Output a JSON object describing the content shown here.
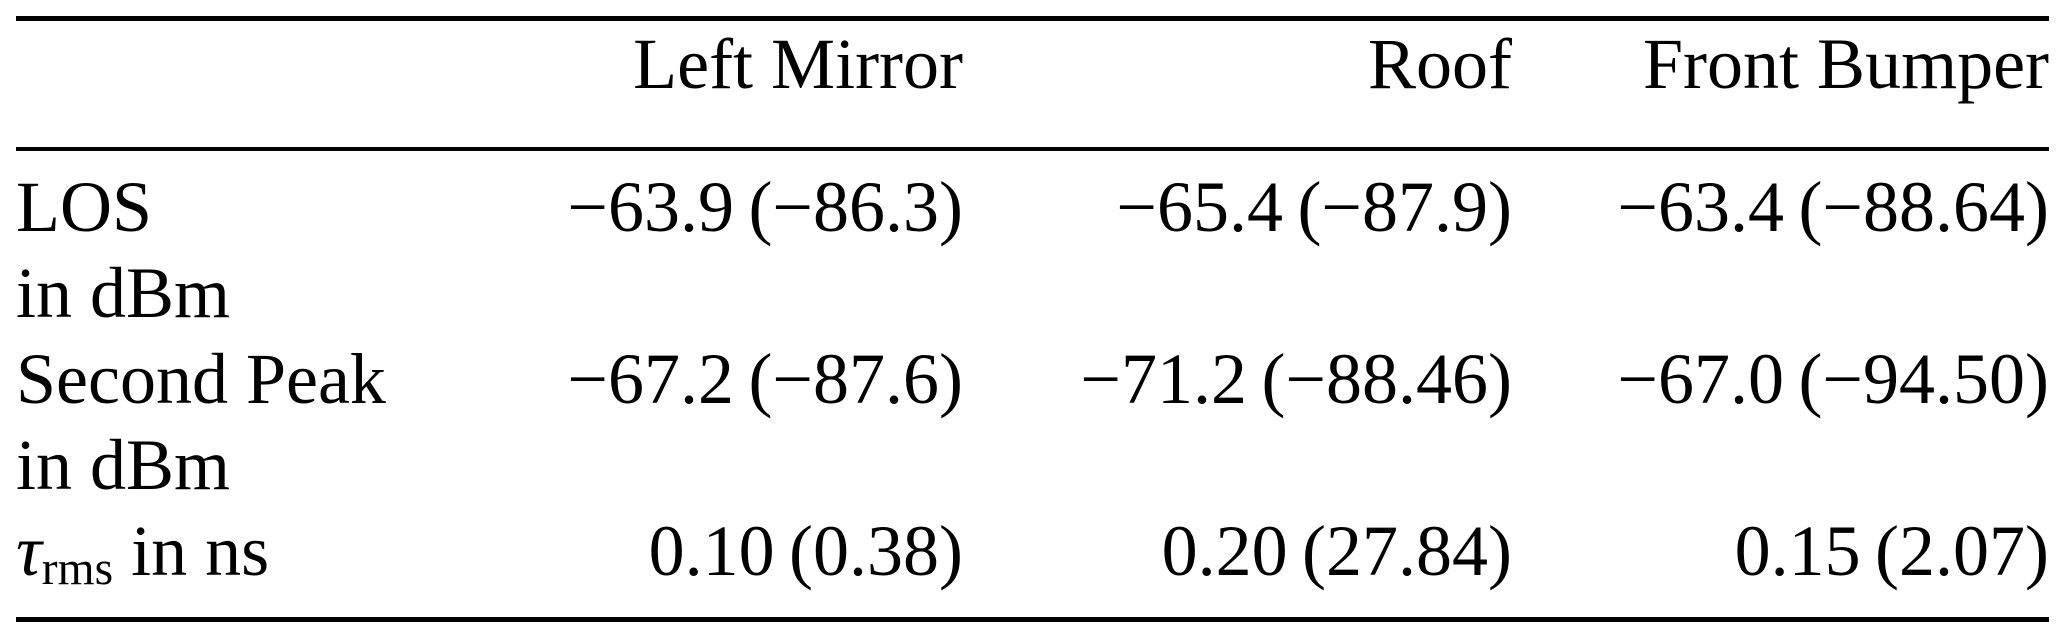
{
  "table": {
    "header": {
      "col0": "",
      "col1": "Left Mirror",
      "col2": "Roof",
      "col3": "Front Bumper"
    },
    "rows": [
      {
        "label_line1": "LOS",
        "label_line2": "in dBm",
        "left_mirror": "−63.9 (−86.3)",
        "roof": "−65.4 (−87.9)",
        "front_bumper": "−63.4 (−88.64)"
      },
      {
        "label_line1": "Second Peak",
        "label_line2": "in dBm",
        "left_mirror": "−67.2 (−87.6)",
        "roof": "−71.2 (−88.46)",
        "front_bumper": "−67.0 (−94.50)"
      },
      {
        "label_symbol": "τ",
        "label_subscript": "rms",
        "label_suffix": " in ns",
        "left_mirror": "0.10 (0.38)",
        "roof": "0.20 (27.84)",
        "front_bumper": "0.15 (2.07)"
      }
    ]
  }
}
